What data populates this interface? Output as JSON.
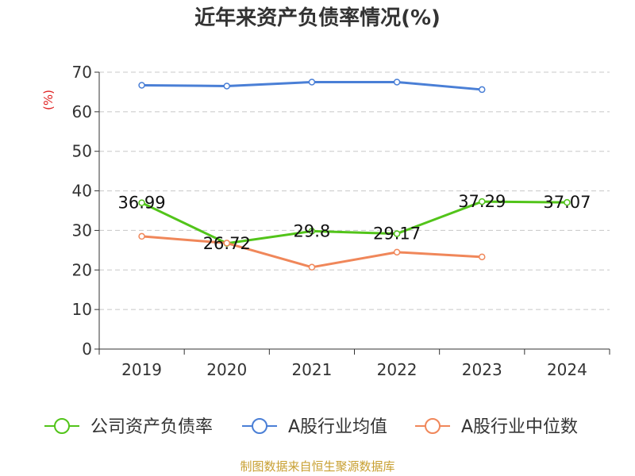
{
  "chart_data": {
    "type": "line",
    "title": "近年来资产负债率情况(%)",
    "ylabel": "(%)",
    "xlabel": "",
    "categories": [
      "2019",
      "2020",
      "2021",
      "2022",
      "2023",
      "2024"
    ],
    "ylim": [
      0,
      70
    ],
    "yticks": [
      0,
      10,
      20,
      30,
      40,
      50,
      60,
      70
    ],
    "grid": true,
    "legend_position": "bottom",
    "series": [
      {
        "name": "公司资产负债率",
        "color": "#52c41a",
        "values": [
          36.99,
          26.72,
          29.8,
          29.17,
          37.29,
          37.07
        ],
        "labels": [
          "36.99",
          "26.72",
          "29.8",
          "29.17",
          "37.29",
          "37.07"
        ]
      },
      {
        "name": "A股行业均值",
        "color": "#4a7fd6",
        "values": [
          66.7,
          66.5,
          67.5,
          67.5,
          65.6,
          null
        ]
      },
      {
        "name": "A股行业中位数",
        "color": "#f0875a",
        "values": [
          28.5,
          26.8,
          20.7,
          24.5,
          23.3,
          null
        ]
      }
    ]
  },
  "footer": {
    "source": "制图数据来自恒生聚源数据库"
  }
}
